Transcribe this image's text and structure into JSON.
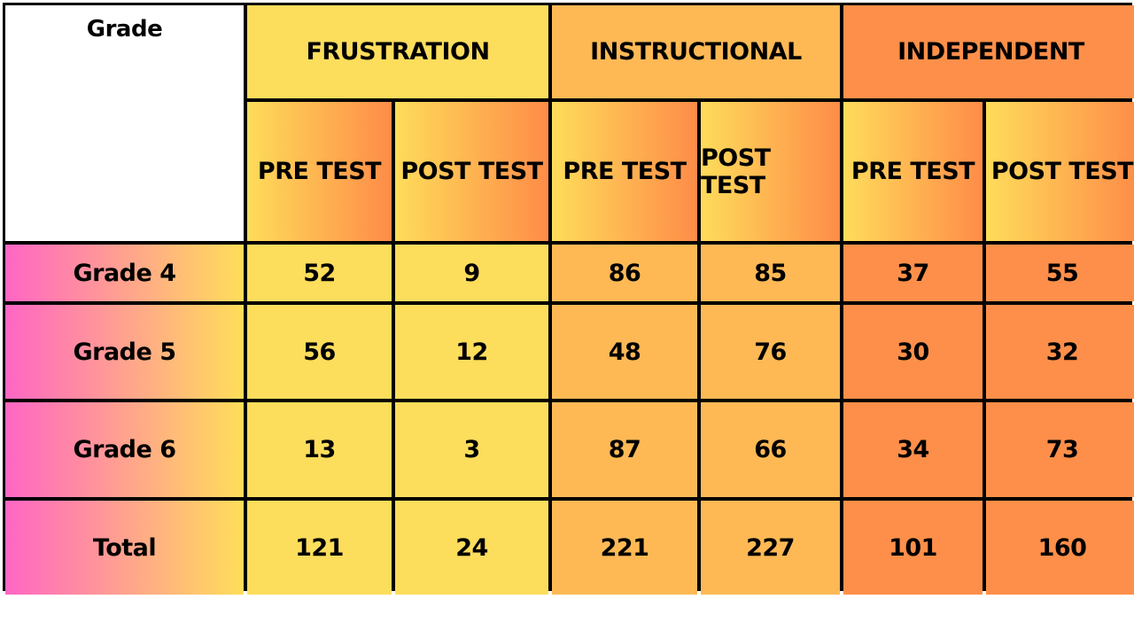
{
  "chart_data": {
    "type": "table",
    "corner_label": "Grade",
    "groups": [
      "FRUSTRATION",
      "INSTRUCTIONAL",
      "INDEPENDENT"
    ],
    "subheaders": [
      "PRE TEST",
      "POST TEST",
      "PRE TEST",
      "POST TEST",
      "PRE TEST",
      "POST TEST"
    ],
    "rows": [
      {
        "label": "Grade 4",
        "values": [
          "52",
          "9",
          "86",
          "85",
          "37",
          "55"
        ]
      },
      {
        "label": "Grade 5",
        "values": [
          "56",
          "12",
          "48",
          "76",
          "30",
          "32"
        ]
      },
      {
        "label": "Grade 6",
        "values": [
          "13",
          "3",
          "87",
          "66",
          "34",
          "73"
        ]
      },
      {
        "label": "Total",
        "values": [
          "121",
          "24",
          "221",
          "227",
          "101",
          "160"
        ]
      }
    ],
    "colors": {
      "frustration": "#fddd5c",
      "instructional": "#feb955",
      "independent": "#fe8f4a",
      "row_label_gradient": [
        "#ff66c4",
        "#ffde59"
      ],
      "border": "#000000"
    }
  }
}
